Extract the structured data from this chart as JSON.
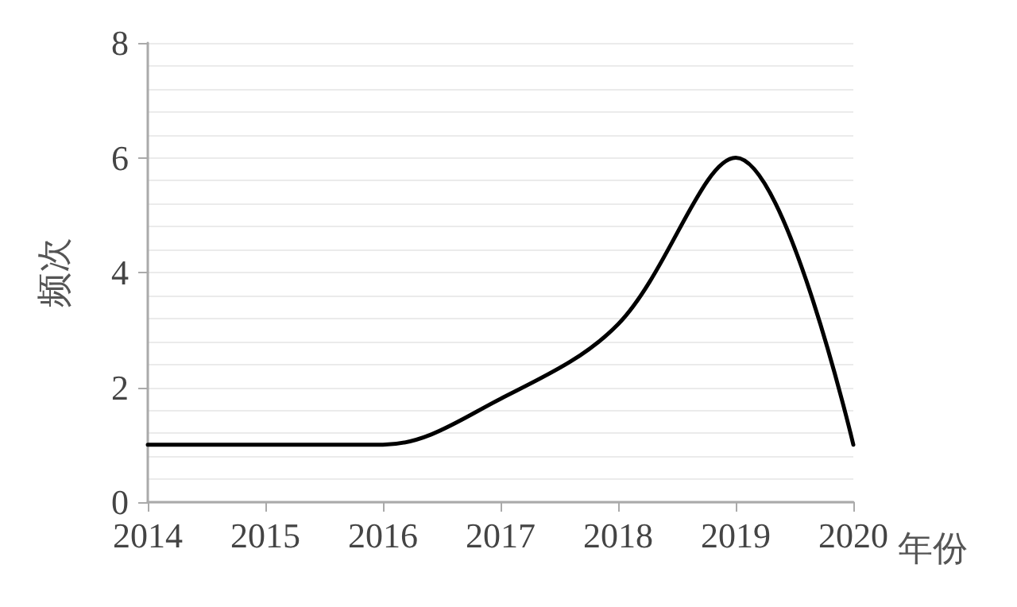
{
  "chart_data": {
    "type": "line",
    "xlabel": "年份",
    "ylabel": "频次",
    "x": [
      2014,
      2015,
      2016,
      2017,
      2018,
      2019,
      2020
    ],
    "series": [
      {
        "color": "#000000",
        "values": [
          1,
          1,
          1,
          1.8,
          3.1,
          6,
          1
        ]
      }
    ],
    "xlim": [
      2014,
      2020
    ],
    "xticks": [
      2014,
      2015,
      2016,
      2017,
      2018,
      2019,
      2020
    ],
    "ylim": [
      0,
      8
    ],
    "yticks": [
      0,
      2,
      4,
      6,
      8
    ],
    "grid": "y",
    "marker": "none",
    "line_style": "solid"
  }
}
